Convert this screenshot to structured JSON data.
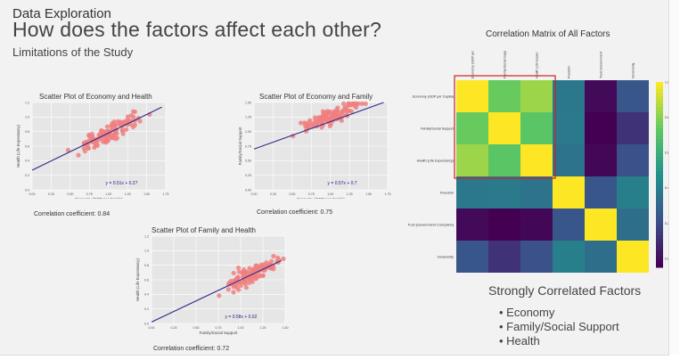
{
  "slide": {
    "kicker": "Data Exploration",
    "title": "How does the factors affect each other?",
    "subtitle": "Limitations of the Study"
  },
  "plots": {
    "p1": {
      "title": "Scatter Plot of Economy and Health",
      "xlabel": "Economy (GDP per Capita)",
      "ylabel": "Health (Life Expectancy)",
      "equation": "y = 0.51x + 0.27",
      "coef": "Correlation coefficient: 0.84",
      "xticks": [
        "0.00",
        "0.25",
        "0.50",
        "0.75",
        "1.00",
        "1.25",
        "1.50",
        "1.75"
      ],
      "yticks": [
        "0.0",
        "0.2",
        "0.4",
        "0.6",
        "0.8",
        "1.0",
        "1.2"
      ]
    },
    "p2": {
      "title": "Scatter Plot of Economy and Family",
      "xlabel": "Economy (GDP per Capita)",
      "ylabel": "Family/Social Support",
      "equation": "y = 0.57x + 0.7",
      "coef": "Correlation coefficient: 0.75",
      "xticks": [
        "0.00",
        "0.25",
        "0.50",
        "0.75",
        "1.00",
        "1.25",
        "1.50",
        "1.75"
      ],
      "yticks": [
        "0.00",
        "0.25",
        "0.50",
        "0.75",
        "1.00",
        "1.25",
        "1.50"
      ]
    },
    "p3": {
      "title": "Scatter Plot of Family and Health",
      "xlabel": "Family/Social Support",
      "ylabel": "Health (Life Expectancy)",
      "equation": "y = 0.58x + 0.02",
      "coef": "Correlation coefficient: 0.72",
      "xticks": [
        "0.00",
        "0.25",
        "0.50",
        "0.75",
        "1.00",
        "1.25",
        "1.50"
      ],
      "yticks": [
        "0.0",
        "0.2",
        "0.4",
        "0.6",
        "0.8",
        "1.0",
        "1.2"
      ]
    }
  },
  "matrix": {
    "title": "Correlation Matrix of All Factors",
    "labels": [
      "Economy (GDP per Capita)",
      "Family/Social Support",
      "Health (Life Expectancy)",
      "Freedom",
      "Trust (Government Corruption)",
      "Generosity"
    ],
    "col_labels": [
      "Economy (GDP per",
      "Family/Social Supp",
      "Health (Life Expec",
      "Freedom",
      "Trust (Government",
      "Generosity"
    ],
    "cbar_ticks": [
      "1.0",
      "0.8",
      "0.6",
      "0.4",
      "0.2",
      "0.0"
    ]
  },
  "summary": {
    "heading": "Strongly Correlated Factors",
    "items": [
      "Economy",
      "Family/Social Support",
      "Health"
    ]
  },
  "colors": {
    "dot": "#f08080",
    "line": "#2a2a8a",
    "highlight": "#cc2222"
  },
  "chart_data": [
    {
      "type": "scatter",
      "title": "Scatter Plot of Economy and Health",
      "xlabel": "Economy (GDP per Capita)",
      "ylabel": "Health (Life Expectancy)",
      "xlim": [
        0,
        1.75
      ],
      "ylim": [
        0,
        1.2
      ],
      "fit": {
        "slope": 0.51,
        "intercept": 0.27
      },
      "correlation": 0.84
    },
    {
      "type": "scatter",
      "title": "Scatter Plot of Economy and Family",
      "xlabel": "Economy (GDP per Capita)",
      "ylabel": "Family/Social Support",
      "xlim": [
        0,
        1.75
      ],
      "ylim": [
        0,
        1.5
      ],
      "fit": {
        "slope": 0.57,
        "intercept": 0.7
      },
      "correlation": 0.75
    },
    {
      "type": "scatter",
      "title": "Scatter Plot of Family and Health",
      "xlabel": "Family/Social Support",
      "ylabel": "Health (Life Expectancy)",
      "xlim": [
        0,
        1.5
      ],
      "ylim": [
        0,
        1.2
      ],
      "fit": {
        "slope": 0.58,
        "intercept": 0.02
      },
      "correlation": 0.72
    },
    {
      "type": "heatmap",
      "title": "Correlation Matrix of All Factors",
      "rows": [
        "Economy (GDP per Capita)",
        "Family/Social Support",
        "Health (Life Expectancy)",
        "Freedom",
        "Trust (Government Corruption)",
        "Generosity"
      ],
      "cols": [
        "Economy (GDP per Capita)",
        "Family/Social Support",
        "Health (Life Expectancy)",
        "Freedom",
        "Trust (Government Corruption)",
        "Generosity"
      ],
      "values": [
        [
          1.0,
          0.75,
          0.84,
          0.37,
          -0.02,
          0.23
        ],
        [
          0.75,
          1.0,
          0.72,
          0.38,
          -0.05,
          0.11
        ],
        [
          0.84,
          0.72,
          1.0,
          0.35,
          -0.03,
          0.21
        ],
        [
          0.37,
          0.38,
          0.35,
          1.0,
          0.23,
          0.4
        ],
        [
          -0.02,
          -0.05,
          -0.03,
          0.23,
          1.0,
          0.33
        ],
        [
          0.23,
          0.11,
          0.21,
          0.4,
          0.33,
          1.0
        ]
      ],
      "colorbar": [
        -0.05,
        1.0
      ]
    }
  ]
}
